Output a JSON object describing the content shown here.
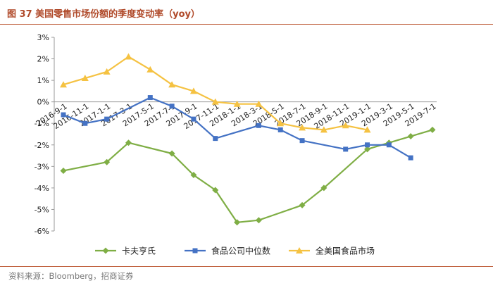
{
  "figure": {
    "title": "图 37 美国零售市场份额的季度变动率（yoy）",
    "source": "资料来源：Bloomberg，招商证券"
  },
  "chart_data": {
    "type": "line",
    "title": "",
    "xlabel": "",
    "ylabel": "",
    "ylim": [
      -6,
      3
    ],
    "y_ticks": [
      "3%",
      "2%",
      "1%",
      "0%",
      "-1%",
      "-2%",
      "-3%",
      "-4%",
      "-5%",
      "-6%"
    ],
    "y_tick_values": [
      3,
      2,
      1,
      0,
      -1,
      -2,
      -3,
      -4,
      -5,
      -6
    ],
    "x_tick_labels": [
      "2016-9-1",
      "2016-11-1",
      "2017-1-1",
      "2017-3-1",
      "2017-5-1",
      "2017-7-1",
      "2017-9-1",
      "2017-11-1",
      "2018-1-1",
      "2018-3-1",
      "2018-5-1",
      "2018-7-1",
      "2018-9-1",
      "2018-11-1",
      "2019-1-1",
      "2019-3-1",
      "2019-5-1",
      "2019-7-1"
    ],
    "grid": false,
    "legend_position": "bottom",
    "series": [
      {
        "name": "卡夫亨氏",
        "color": "#7fae45",
        "marker": "diamond",
        "x": [
          "2016-9-1",
          "2016-11-1",
          "2017-1-1",
          "2017-3-1",
          "2017-5-1",
          "2017-7-1",
          "2017-9-1",
          "2017-11-1",
          "2018-1-1",
          "2018-3-1",
          "2018-5-1",
          "2018-7-1",
          "2018-9-1",
          "2018-11-1",
          "2019-1-1",
          "2019-3-1",
          "2019-5-1",
          "2019-7-1"
        ],
        "values": [
          -3.2,
          null,
          -2.8,
          -1.9,
          null,
          -2.4,
          -3.4,
          -4.1,
          -5.6,
          -5.5,
          null,
          -4.8,
          -4.0,
          null,
          -2.2,
          -1.9,
          -1.6,
          -1.3
        ]
      },
      {
        "name": "食品公司中位数",
        "color": "#4472c4",
        "marker": "square",
        "x": [
          "2016-9-1",
          "2016-11-1",
          "2017-1-1",
          "2017-3-1",
          "2017-5-1",
          "2017-7-1",
          "2017-9-1",
          "2017-11-1",
          "2018-1-1",
          "2018-3-1",
          "2018-5-1",
          "2018-7-1",
          "2018-9-1",
          "2018-11-1",
          "2019-1-1",
          "2019-3-1",
          "2019-5-1",
          "2019-7-1"
        ],
        "values": [
          -0.6,
          -1.0,
          -0.8,
          null,
          0.2,
          -0.2,
          -0.8,
          -1.7,
          null,
          -1.1,
          -1.3,
          -1.8,
          null,
          -2.2,
          -2.0,
          -2.0,
          -2.6,
          null
        ]
      },
      {
        "name": "全美国食品市场",
        "color": "#f5c242",
        "marker": "triangle",
        "x": [
          "2016-9-1",
          "2016-11-1",
          "2017-1-1",
          "2017-3-1",
          "2017-5-1",
          "2017-7-1",
          "2017-9-1",
          "2017-11-1",
          "2018-1-1",
          "2018-3-1",
          "2018-5-1",
          "2018-7-1",
          "2018-9-1",
          "2018-11-1",
          "2019-1-1",
          "2019-3-1",
          "2019-5-1",
          "2019-7-1"
        ],
        "values": [
          0.8,
          1.1,
          1.4,
          2.1,
          1.5,
          0.8,
          0.5,
          0.0,
          -0.1,
          -0.1,
          -1.0,
          -1.2,
          -1.3,
          -1.1,
          -1.3,
          null,
          null,
          null
        ]
      }
    ]
  }
}
